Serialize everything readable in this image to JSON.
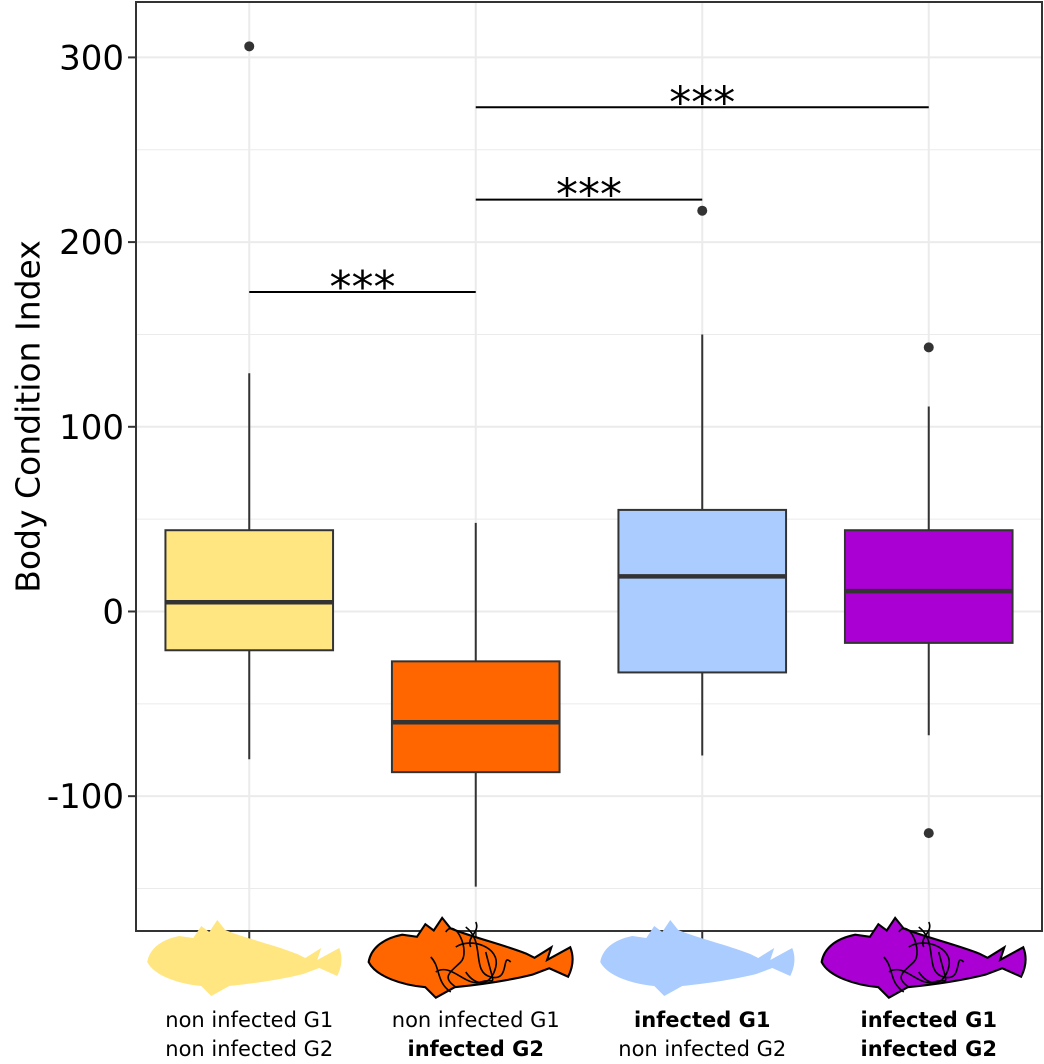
{
  "chart_data": {
    "type": "box",
    "title": "",
    "xlabel": "",
    "ylabel": "Body Condition Index",
    "ylim": [
      -173,
      330
    ],
    "yticks": [
      -100,
      0,
      100,
      200,
      300
    ],
    "ytick_labels": [
      "-100",
      "0",
      "100",
      "200",
      "300"
    ],
    "grid": true,
    "categories": [
      {
        "line1": "non infected G1",
        "line1_bold": false,
        "line2": "non infected G2",
        "line2_bold": false
      },
      {
        "line1": "non infected G1",
        "line1_bold": false,
        "line2": "infected G2",
        "line2_bold": true
      },
      {
        "line1": "infected G1",
        "line1_bold": true,
        "line2": "non infected G2",
        "line2_bold": false
      },
      {
        "line1": "infected G1",
        "line1_bold": true,
        "line2": "infected G2",
        "line2_bold": true
      }
    ],
    "boxes": [
      {
        "color": "#FFE680",
        "whisker_low": -80,
        "q1": -21,
        "median": 5,
        "q3": 44,
        "whisker_high": 129,
        "outliers": [
          306
        ]
      },
      {
        "color": "#FF6600",
        "whisker_low": -149,
        "q1": -87,
        "median": -60,
        "q3": -27,
        "whisker_high": 48,
        "outliers": []
      },
      {
        "color": "#AACCFF",
        "whisker_low": -78,
        "q1": -33,
        "median": 19,
        "q3": 55,
        "whisker_high": 150,
        "outliers": [
          217
        ]
      },
      {
        "color": "#AA00D4",
        "whisker_low": -67,
        "q1": -17,
        "median": 11,
        "q3": 44,
        "whisker_high": 111,
        "outliers": [
          143,
          -120
        ]
      }
    ],
    "significance": [
      {
        "from": 0,
        "to": 1,
        "y": 173,
        "label": "***"
      },
      {
        "from": 1,
        "to": 2,
        "y": 223,
        "label": "***"
      },
      {
        "from": 1,
        "to": 3,
        "y": 273,
        "label": "***"
      }
    ]
  }
}
